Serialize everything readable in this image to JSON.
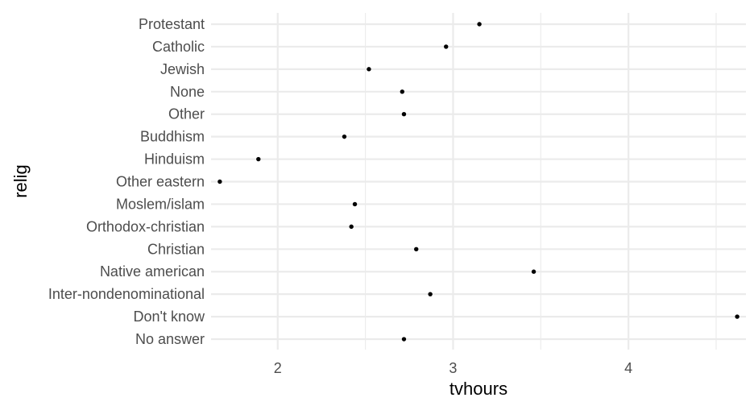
{
  "chart_data": {
    "type": "scatter",
    "xlabel": "tvhours",
    "ylabel": "relig",
    "xlim": [
      1.62,
      4.67
    ],
    "x_ticks": [
      2,
      3,
      4
    ],
    "x_tick_labels": [
      "2",
      "3",
      "4"
    ],
    "grid": true,
    "categories": [
      "Protestant",
      "Catholic",
      "Jewish",
      "None",
      "Other",
      "Buddhism",
      "Hinduism",
      "Other eastern",
      "Moslem/islam",
      "Orthodox-christian",
      "Christian",
      "Native american",
      "Inter-nondenominational",
      "Don't know",
      "No answer"
    ],
    "values": [
      3.15,
      2.96,
      2.52,
      2.71,
      2.72,
      2.38,
      1.89,
      1.67,
      2.44,
      2.42,
      2.79,
      3.46,
      2.87,
      4.62,
      2.72
    ]
  }
}
